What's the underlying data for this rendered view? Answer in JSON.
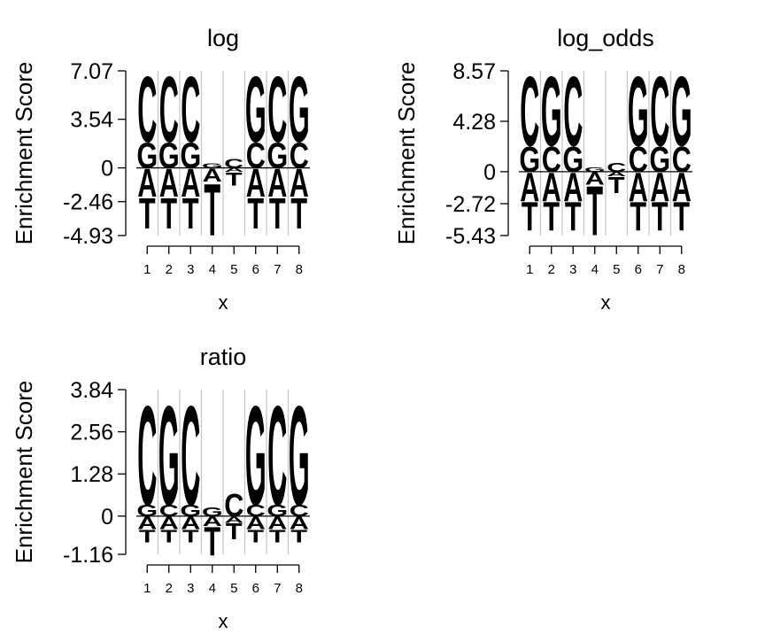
{
  "chart_data": [
    {
      "type": "sequence-logo",
      "title": "log",
      "ylabel": "Enrichment Score",
      "xlabel": "x",
      "ylim": [
        -4.93,
        7.07
      ],
      "yticks": [
        "7.07",
        "3.54",
        "0",
        "-2.46",
        "-4.93"
      ],
      "ytick_values": [
        7.07,
        3.54,
        0,
        -2.46,
        -4.93
      ],
      "positions": [
        "1",
        "2",
        "3",
        "4",
        "5",
        "6",
        "7",
        "8"
      ],
      "stacks": [
        {
          "up": [
            {
              "letter": "G",
              "value": 1.9
            },
            {
              "letter": "C",
              "value": 4.9
            }
          ],
          "down": [
            {
              "letter": "A",
              "value": 2.1
            },
            {
              "letter": "T",
              "value": 2.3
            }
          ]
        },
        {
          "up": [
            {
              "letter": "G",
              "value": 1.9
            },
            {
              "letter": "C",
              "value": 4.9
            }
          ],
          "down": [
            {
              "letter": "A",
              "value": 2.1
            },
            {
              "letter": "T",
              "value": 2.3
            }
          ]
        },
        {
          "up": [
            {
              "letter": "G",
              "value": 1.9
            },
            {
              "letter": "C",
              "value": 4.9
            }
          ],
          "down": [
            {
              "letter": "A",
              "value": 2.1
            },
            {
              "letter": "T",
              "value": 2.3
            }
          ]
        },
        {
          "up": [
            {
              "letter": "G",
              "value": 0.35
            }
          ],
          "down": [
            {
              "letter": "A",
              "value": 1.0
            },
            {
              "letter": "T",
              "value": 3.9
            }
          ]
        },
        {
          "up": [
            {
              "letter": "C",
              "value": 0.7
            }
          ],
          "down": [
            {
              "letter": "A",
              "value": 0.3
            },
            {
              "letter": "T",
              "value": 1.0
            }
          ]
        },
        {
          "up": [
            {
              "letter": "C",
              "value": 1.9
            },
            {
              "letter": "G",
              "value": 4.9
            }
          ],
          "down": [
            {
              "letter": "A",
              "value": 2.1
            },
            {
              "letter": "T",
              "value": 2.3
            }
          ]
        },
        {
          "up": [
            {
              "letter": "G",
              "value": 1.9
            },
            {
              "letter": "C",
              "value": 4.9
            }
          ],
          "down": [
            {
              "letter": "A",
              "value": 2.1
            },
            {
              "letter": "T",
              "value": 2.3
            }
          ]
        },
        {
          "up": [
            {
              "letter": "C",
              "value": 1.9
            },
            {
              "letter": "G",
              "value": 4.9
            }
          ],
          "down": [
            {
              "letter": "A",
              "value": 2.1
            },
            {
              "letter": "T",
              "value": 2.3
            }
          ]
        }
      ]
    },
    {
      "type": "sequence-logo",
      "title": "log_odds",
      "ylabel": "Enrichment Score",
      "xlabel": "x",
      "ylim": [
        -5.43,
        8.57
      ],
      "yticks": [
        "8.57",
        "4.28",
        "0",
        "-2.72",
        "-5.43"
      ],
      "ytick_values": [
        8.57,
        4.28,
        0,
        -2.72,
        -5.43
      ],
      "positions": [
        "1",
        "2",
        "3",
        "4",
        "5",
        "6",
        "7",
        "8"
      ],
      "stacks": [
        {
          "up": [
            {
              "letter": "G",
              "value": 2.2
            },
            {
              "letter": "C",
              "value": 6.1
            }
          ],
          "down": [
            {
              "letter": "A",
              "value": 2.5
            },
            {
              "letter": "T",
              "value": 2.5
            }
          ]
        },
        {
          "up": [
            {
              "letter": "C",
              "value": 2.2
            },
            {
              "letter": "G",
              "value": 6.1
            }
          ],
          "down": [
            {
              "letter": "A",
              "value": 2.5
            },
            {
              "letter": "T",
              "value": 2.5
            }
          ]
        },
        {
          "up": [
            {
              "letter": "G",
              "value": 2.2
            },
            {
              "letter": "C",
              "value": 6.1
            }
          ],
          "down": [
            {
              "letter": "A",
              "value": 2.5
            },
            {
              "letter": "T",
              "value": 2.5
            }
          ]
        },
        {
          "up": [
            {
              "letter": "G",
              "value": 0.4
            }
          ],
          "down": [
            {
              "letter": "A",
              "value": 1.1
            },
            {
              "letter": "T",
              "value": 4.3
            }
          ]
        },
        {
          "up": [
            {
              "letter": "C",
              "value": 0.8
            }
          ],
          "down": [
            {
              "letter": "A",
              "value": 0.4
            },
            {
              "letter": "T",
              "value": 1.4
            }
          ]
        },
        {
          "up": [
            {
              "letter": "C",
              "value": 2.2
            },
            {
              "letter": "G",
              "value": 6.1
            }
          ],
          "down": [
            {
              "letter": "A",
              "value": 2.5
            },
            {
              "letter": "T",
              "value": 2.5
            }
          ]
        },
        {
          "up": [
            {
              "letter": "G",
              "value": 2.2
            },
            {
              "letter": "C",
              "value": 6.1
            }
          ],
          "down": [
            {
              "letter": "A",
              "value": 2.5
            },
            {
              "letter": "T",
              "value": 2.5
            }
          ]
        },
        {
          "up": [
            {
              "letter": "C",
              "value": 2.2
            },
            {
              "letter": "G",
              "value": 6.1
            }
          ],
          "down": [
            {
              "letter": "A",
              "value": 2.5
            },
            {
              "letter": "T",
              "value": 2.5
            }
          ]
        }
      ]
    },
    {
      "type": "sequence-logo",
      "title": "ratio",
      "ylabel": "Enrichment Score",
      "xlabel": "x",
      "ylim": [
        -1.16,
        3.84
      ],
      "yticks": [
        "3.84",
        "2.56",
        "1.28",
        "0",
        "-1.16"
      ],
      "ytick_values": [
        3.84,
        2.56,
        1.28,
        0,
        -1.16
      ],
      "positions": [
        "1",
        "2",
        "3",
        "4",
        "5",
        "6",
        "7",
        "8"
      ],
      "stacks": [
        {
          "up": [
            {
              "letter": "G",
              "value": 0.35
            },
            {
              "letter": "C",
              "value": 3.1
            }
          ],
          "down": [
            {
              "letter": "A",
              "value": 0.4
            },
            {
              "letter": "T",
              "value": 0.4
            }
          ]
        },
        {
          "up": [
            {
              "letter": "C",
              "value": 0.35
            },
            {
              "letter": "G",
              "value": 3.1
            }
          ],
          "down": [
            {
              "letter": "A",
              "value": 0.4
            },
            {
              "letter": "T",
              "value": 0.4
            }
          ]
        },
        {
          "up": [
            {
              "letter": "G",
              "value": 0.35
            },
            {
              "letter": "C",
              "value": 3.1
            }
          ],
          "down": [
            {
              "letter": "A",
              "value": 0.4
            },
            {
              "letter": "T",
              "value": 0.4
            }
          ]
        },
        {
          "up": [
            {
              "letter": "G",
              "value": 0.28
            }
          ],
          "down": [
            {
              "letter": "A",
              "value": 0.3
            },
            {
              "letter": "T",
              "value": 0.9
            }
          ]
        },
        {
          "up": [
            {
              "letter": "C",
              "value": 0.7
            }
          ],
          "down": [
            {
              "letter": "A",
              "value": 0.2
            },
            {
              "letter": "T",
              "value": 0.5
            }
          ]
        },
        {
          "up": [
            {
              "letter": "C",
              "value": 0.35
            },
            {
              "letter": "G",
              "value": 3.1
            }
          ],
          "down": [
            {
              "letter": "A",
              "value": 0.4
            },
            {
              "letter": "T",
              "value": 0.4
            }
          ]
        },
        {
          "up": [
            {
              "letter": "G",
              "value": 0.35
            },
            {
              "letter": "C",
              "value": 3.1
            }
          ],
          "down": [
            {
              "letter": "A",
              "value": 0.4
            },
            {
              "letter": "T",
              "value": 0.4
            }
          ]
        },
        {
          "up": [
            {
              "letter": "C",
              "value": 0.35
            },
            {
              "letter": "G",
              "value": 3.1
            }
          ],
          "down": [
            {
              "letter": "A",
              "value": 0.4
            },
            {
              "letter": "T",
              "value": 0.4
            }
          ]
        }
      ]
    }
  ],
  "colors": {
    "A": "#c8102e",
    "C": "#f8a055",
    "G": "#a2d38c",
    "T": "#2a72b0",
    "grid": "#c8c8c8",
    "axis": "#000000"
  }
}
